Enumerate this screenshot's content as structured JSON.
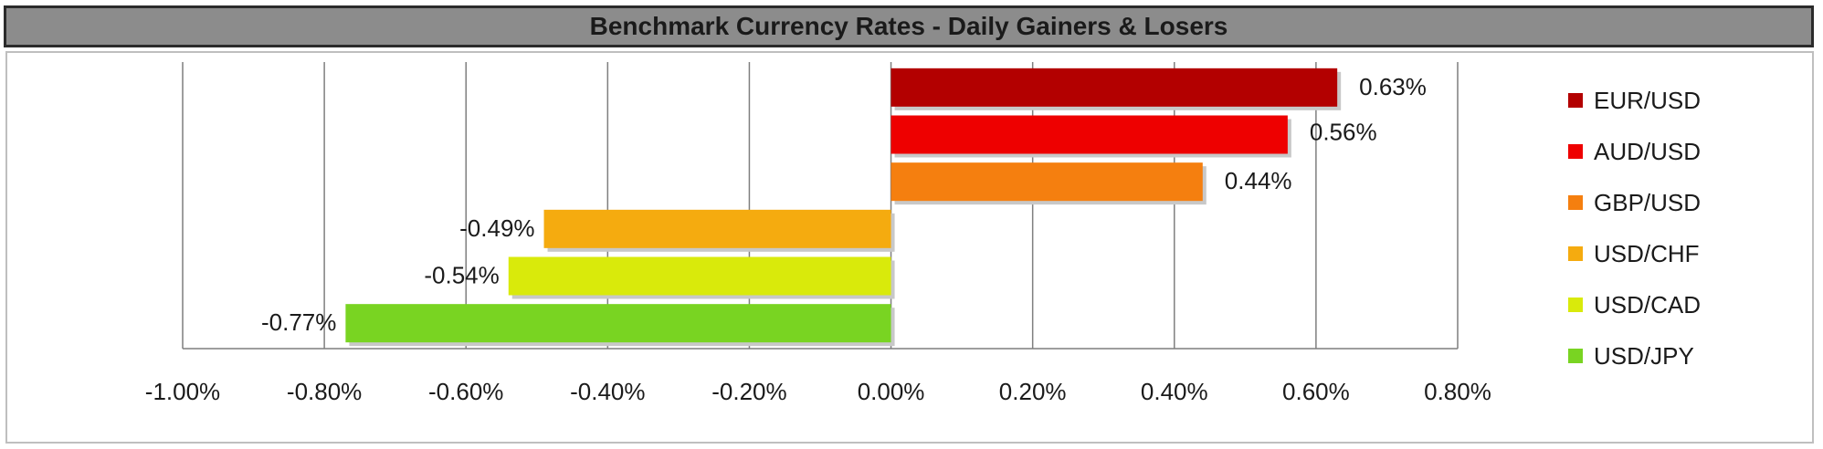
{
  "chart_data": {
    "type": "bar",
    "orientation": "horizontal",
    "title": "Benchmark Currency Rates - Daily Gainers & Losers",
    "categories": [
      "EUR/USD",
      "AUD/USD",
      "GBP/USD",
      "USD/CHF",
      "USD/CAD",
      "USD/JPY"
    ],
    "values": [
      0.63,
      0.56,
      0.44,
      -0.49,
      -0.54,
      -0.77
    ],
    "value_labels": [
      "0.63%",
      "0.56%",
      "0.44%",
      "-0.49%",
      "-0.54%",
      "-0.77%"
    ],
    "colors": [
      "#b30000",
      "#ee0000",
      "#f57f0f",
      "#f5ab0f",
      "#d9ea0b",
      "#79d422"
    ],
    "xlim": [
      -1.0,
      0.8
    ],
    "x_ticks": [
      -1.0,
      -0.8,
      -0.6,
      -0.4,
      -0.2,
      0.0,
      0.2,
      0.4,
      0.6,
      0.8
    ],
    "x_tick_labels": [
      "-1.00%",
      "-0.80%",
      "-0.60%",
      "-0.40%",
      "-0.20%",
      "0.00%",
      "0.20%",
      "0.40%",
      "0.60%",
      "0.80%"
    ],
    "grid": "vertical",
    "legend_position": "right"
  }
}
